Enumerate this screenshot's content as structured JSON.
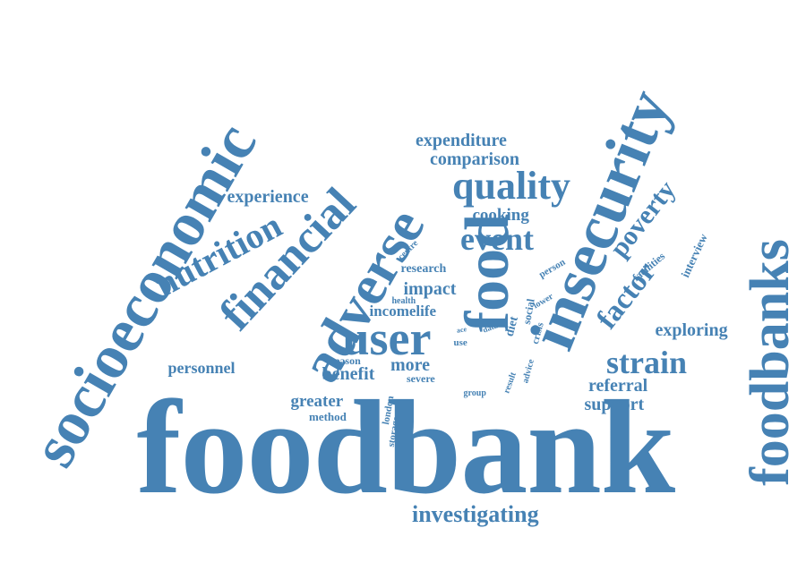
{
  "color": "#4682b4",
  "words": [
    {
      "id": "foodbank",
      "text": "foodbank"
    },
    {
      "id": "socioeconomic",
      "text": "socioeconomic"
    },
    {
      "id": "insecurity",
      "text": "insecurity"
    },
    {
      "id": "foodbanks",
      "text": "foodbanks"
    },
    {
      "id": "adverse",
      "text": "adverse"
    },
    {
      "id": "financial",
      "text": "financial"
    },
    {
      "id": "food",
      "text": "food"
    },
    {
      "id": "quality",
      "text": "quality"
    },
    {
      "id": "user",
      "text": "user"
    },
    {
      "id": "nutrition",
      "text": "nutrition"
    },
    {
      "id": "event",
      "text": "event"
    },
    {
      "id": "strain",
      "text": "strain"
    },
    {
      "id": "factor",
      "text": "factor"
    },
    {
      "id": "poverty",
      "text": "poverty"
    },
    {
      "id": "investigating",
      "text": "investigating"
    },
    {
      "id": "expenditure",
      "text": "expenditure"
    },
    {
      "id": "comparison",
      "text": "comparison"
    },
    {
      "id": "experience",
      "text": "experience"
    },
    {
      "id": "cooking",
      "text": "cooking"
    },
    {
      "id": "exploring",
      "text": "exploring"
    },
    {
      "id": "more",
      "text": "more"
    },
    {
      "id": "benefit",
      "text": "benefit"
    },
    {
      "id": "impact",
      "text": "impact"
    },
    {
      "id": "incomelife",
      "text": "incomelife"
    },
    {
      "id": "referral",
      "text": "referral"
    },
    {
      "id": "support",
      "text": "support"
    },
    {
      "id": "greater",
      "text": "greater"
    },
    {
      "id": "personnel",
      "text": "personnel"
    },
    {
      "id": "research",
      "text": "research"
    },
    {
      "id": "interview",
      "text": "interview"
    },
    {
      "id": "method",
      "text": "method"
    },
    {
      "id": "diet",
      "text": "diet"
    },
    {
      "id": "social",
      "text": "social"
    },
    {
      "id": "facilities",
      "text": "facilities"
    },
    {
      "id": "crisis",
      "text": "crisis"
    },
    {
      "id": "london",
      "text": "london"
    },
    {
      "id": "storage",
      "text": "storage"
    },
    {
      "id": "reason",
      "text": "reason"
    },
    {
      "id": "severe",
      "text": "severe"
    },
    {
      "id": "group",
      "text": "group"
    },
    {
      "id": "person",
      "text": "person"
    },
    {
      "id": "lower",
      "text": "lower"
    },
    {
      "id": "advice",
      "text": "advice"
    },
    {
      "id": "result",
      "text": "result"
    },
    {
      "id": "health",
      "text": "health"
    },
    {
      "id": "centre",
      "text": "centre"
    },
    {
      "id": "data",
      "text": "data"
    },
    {
      "id": "use",
      "text": "use"
    },
    {
      "id": "ace",
      "text": "ace"
    }
  ]
}
